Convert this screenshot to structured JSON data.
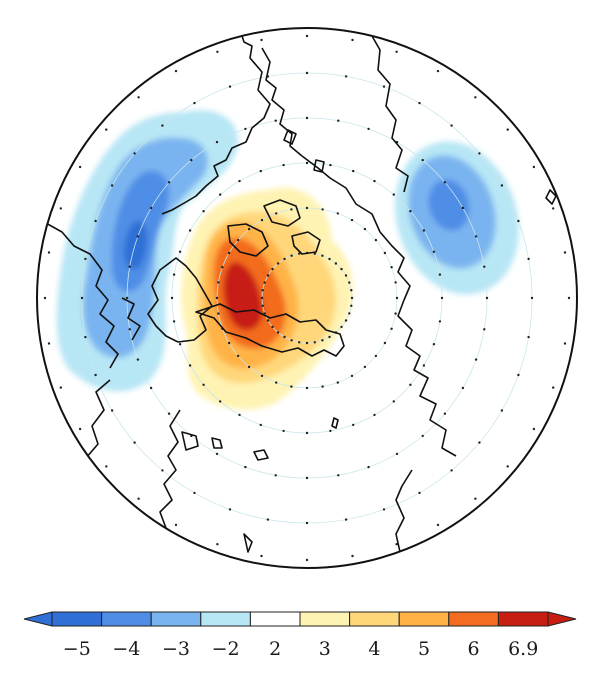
{
  "map": {
    "projection": "north-polar-stereographic",
    "field": "anomaly",
    "features": [
      "coastlines",
      "latitude circles",
      "dotted graticule"
    ]
  },
  "colorbar": {
    "extend": "both",
    "colors": [
      "#2f6fd6",
      "#4f8ee6",
      "#7ab4f0",
      "#b7e6f5",
      "#ffffff",
      "#fff3b3",
      "#ffd77a",
      "#ffb347",
      "#f36c1f",
      "#c81e12"
    ],
    "tick_labels": [
      "−5",
      "−4",
      "−3",
      "−2",
      "2",
      "3",
      "4",
      "5",
      "6",
      "6.9"
    ]
  }
}
